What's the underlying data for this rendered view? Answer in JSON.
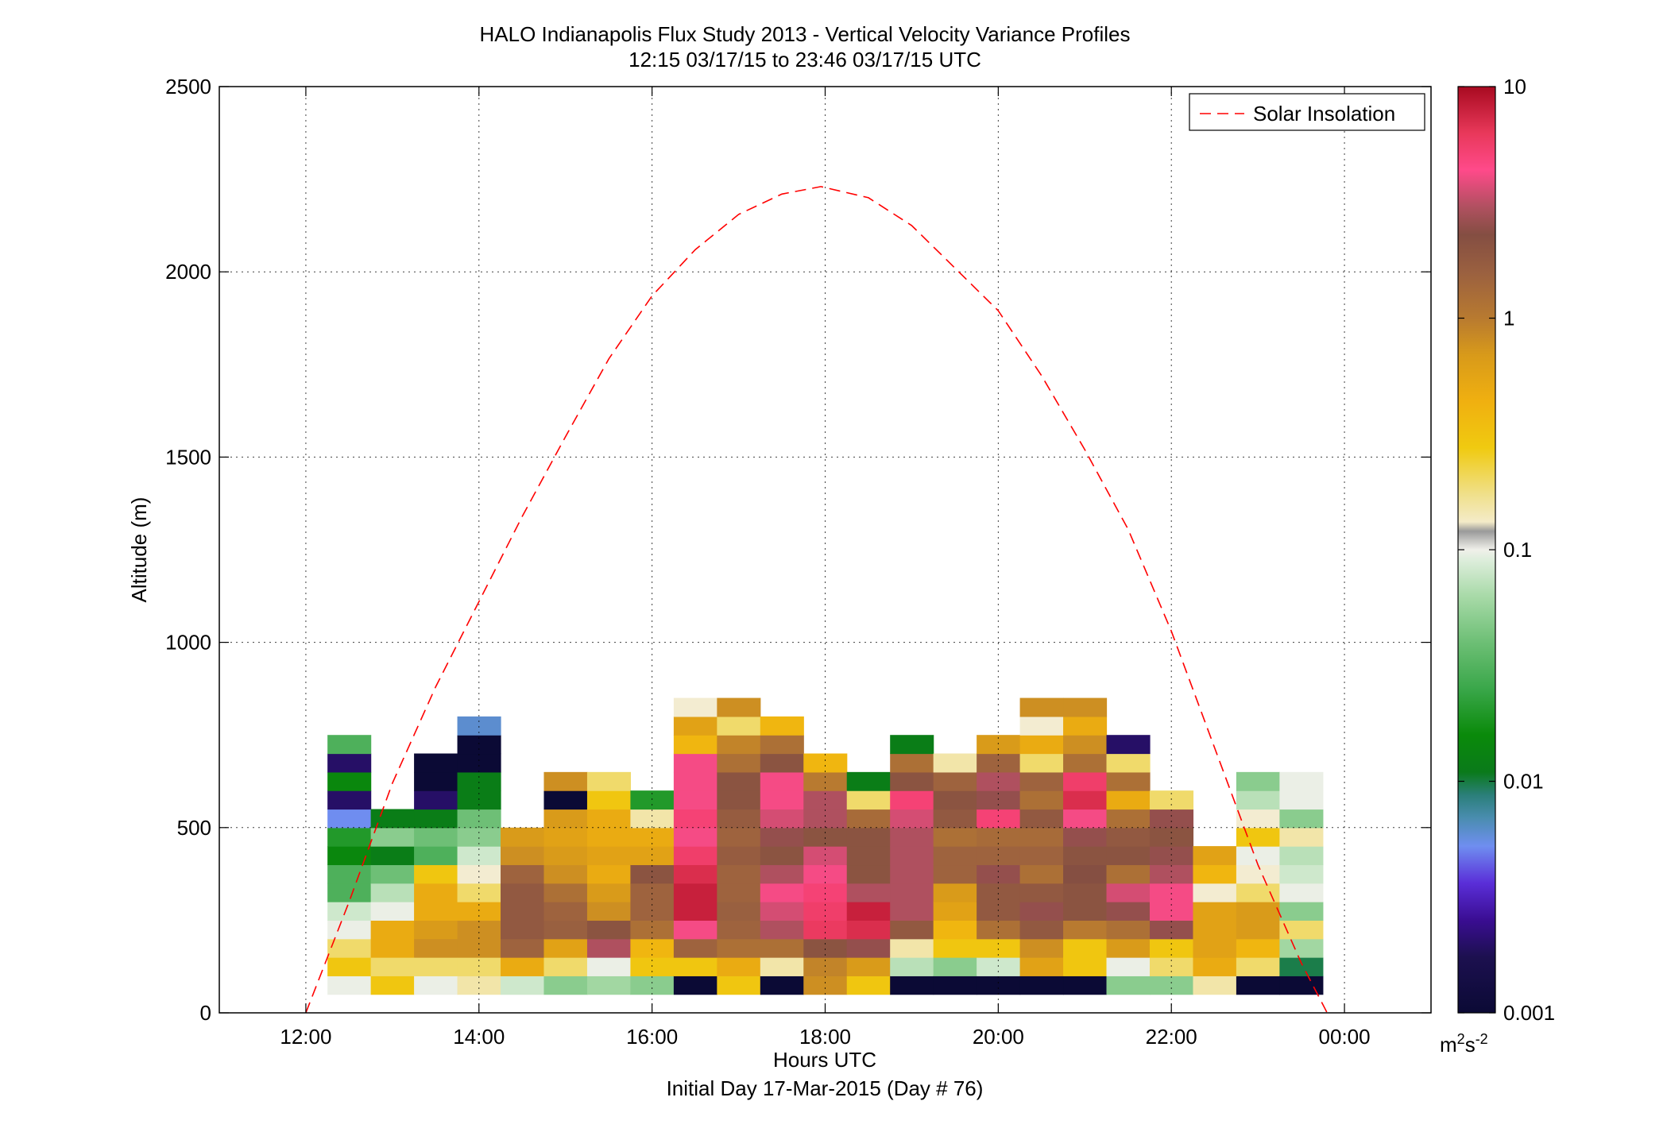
{
  "chart_data": {
    "type": "heatmap",
    "title": "HALO Indianapolis Flux Study 2013 - Vertical Velocity Variance Profiles",
    "subtitle": "12:15 03/17/15 to 23:46 03/17/15  UTC",
    "xlabel": "Hours UTC",
    "xlabel2": "Initial Day 17-Mar-2015 (Day # 76)",
    "ylabel": "Altitude (m)",
    "xlim": [
      11.0,
      25.0
    ],
    "ylim": [
      0,
      2500
    ],
    "x_ticks": [
      12,
      14,
      16,
      18,
      20,
      22,
      24
    ],
    "x_tick_labels": [
      "12:00",
      "14:00",
      "16:00",
      "18:00",
      "20:00",
      "22:00",
      "00:00"
    ],
    "y_ticks": [
      0,
      500,
      1000,
      1500,
      2000,
      2500
    ],
    "y_tick_labels": [
      "0",
      "500",
      "1000",
      "1500",
      "2000",
      "2500"
    ],
    "grid": true,
    "legend": {
      "position": "top-right",
      "entries": [
        "Solar Insolation"
      ]
    },
    "colorbar": {
      "scale": "log",
      "range": [
        0.001,
        10
      ],
      "ticks": [
        10,
        1,
        0.1,
        0.01,
        0.001
      ],
      "tick_labels": [
        "10",
        "1",
        "0.1",
        "0.01",
        "0.001"
      ],
      "units_base": "m",
      "units_exp1": "2",
      "units_mid": "s",
      "units_exp2": "-2"
    },
    "gate_height_m": 50,
    "column_width_h": 0.5,
    "first_column_center_h": 12.5,
    "columns": [
      [
        0.1,
        0.3,
        0.2,
        0.1,
        0.08,
        0.03,
        0.03,
        0.015,
        0.02,
        0.005,
        0.002,
        0.015,
        0.002,
        0.03
      ],
      [
        0.3,
        0.2,
        0.5,
        0.5,
        0.1,
        0.07,
        0.04,
        0.012,
        0.05,
        0.012
      ],
      [
        0.1,
        0.2,
        0.8,
        0.7,
        0.5,
        0.5,
        0.3,
        0.03,
        0.04,
        0.012,
        0.002,
        0.001,
        0.001
      ],
      [
        0.15,
        0.2,
        0.8,
        0.8,
        0.5,
        0.2,
        0.12,
        0.08,
        0.05,
        0.04,
        0.012,
        0.012,
        0.001,
        0.001,
        0.006
      ],
      [
        0.08,
        0.5,
        1.5,
        1.8,
        1.8,
        1.8,
        1.5,
        0.8,
        0.7
      ],
      [
        0.05,
        0.2,
        0.6,
        1.6,
        1.5,
        1.2,
        0.8,
        0.7,
        0.6,
        0.7,
        0.001,
        0.8
      ],
      [
        0.06,
        0.1,
        3.0,
        2.0,
        0.8,
        0.7,
        0.5,
        0.6,
        0.5,
        0.5,
        0.3,
        0.2
      ],
      [
        0.05,
        0.3,
        0.4,
        1.2,
        1.5,
        1.5,
        2.0,
        0.6,
        0.5,
        0.15,
        0.02
      ],
      [
        0.001,
        0.3,
        1.5,
        4.0,
        8.0,
        8.0,
        7.0,
        5.5,
        4.0,
        5.0,
        4.0,
        4.0,
        4.0,
        0.4,
        0.6,
        0.12
      ],
      [
        0.3,
        0.5,
        1.2,
        1.5,
        1.6,
        1.5,
        1.5,
        1.7,
        1.5,
        1.7,
        2.0,
        2.0,
        1.2,
        0.9,
        0.2,
        0.8
      ],
      [
        0.001,
        0.15,
        1.2,
        3.0,
        3.5,
        4.0,
        3.0,
        2.0,
        2.5,
        3.5,
        4.0,
        4.0,
        2.0,
        1.2,
        0.4
      ],
      [
        0.8,
        0.9,
        2.0,
        6.0,
        5.5,
        5.0,
        4.0,
        3.5,
        2.0,
        3.0,
        3.0,
        1.0,
        0.4
      ],
      [
        0.3,
        0.7,
        2.5,
        7.0,
        8.0,
        3.0,
        2.0,
        2.0,
        2.0,
        1.3,
        0.2,
        0.012
      ],
      [
        0.001,
        0.07,
        0.15,
        1.8,
        3.0,
        3.0,
        3.0,
        3.0,
        3.0,
        3.5,
        5.0,
        2.0,
        1.2,
        0.012
      ],
      [
        0.001,
        0.05,
        0.3,
        0.4,
        0.6,
        0.7,
        1.5,
        1.5,
        1.2,
        1.8,
        2.0,
        1.5,
        0.15
      ],
      [
        0.001,
        0.08,
        0.3,
        1.2,
        1.8,
        1.8,
        2.5,
        1.5,
        1.3,
        5.0,
        2.5,
        3.0,
        1.5,
        0.7
      ],
      [
        0.001,
        0.6,
        0.8,
        1.8,
        2.5,
        1.8,
        1.2,
        1.5,
        1.3,
        1.8,
        1.2,
        1.5,
        0.2,
        0.5,
        0.12,
        0.8
      ],
      [
        0.001,
        0.3,
        0.3,
        1.0,
        2.0,
        2.0,
        2.2,
        2.0,
        2.5,
        4.0,
        7.0,
        5.5,
        1.2,
        0.8,
        0.5,
        0.8
      ],
      [
        0.05,
        0.1,
        0.7,
        1.2,
        2.5,
        3.5,
        1.2,
        2.0,
        1.8,
        1.2,
        0.5,
        1.2,
        0.2,
        0.002
      ],
      [
        0.05,
        0.2,
        0.3,
        2.5,
        4.0,
        4.0,
        3.0,
        2.5,
        2.0,
        2.5,
        0.2
      ],
      [
        0.15,
        0.5,
        0.6,
        0.6,
        0.6,
        0.12,
        0.4,
        0.6
      ],
      [
        0.001,
        0.2,
        0.4,
        0.7,
        0.7,
        0.2,
        0.12,
        0.1,
        0.3,
        0.12,
        0.07,
        0.05
      ],
      [
        0.001,
        0.01,
        0.06,
        0.2,
        0.05,
        0.1,
        0.08,
        0.07,
        0.15,
        0.05,
        0.1,
        0.1
      ]
    ],
    "series": [
      {
        "name": "Solar Insolation",
        "type": "line",
        "style": "dashed",
        "color": "#ff0000",
        "x": [
          12.0,
          12.5,
          13.0,
          13.5,
          14.0,
          14.5,
          15.0,
          15.5,
          16.0,
          16.5,
          17.0,
          17.5,
          17.95,
          18.5,
          19.0,
          19.5,
          20.0,
          20.5,
          21.0,
          21.5,
          22.0,
          22.5,
          23.0,
          23.5,
          23.8
        ],
        "y": [
          0,
          300,
          620,
          880,
          1110,
          1340,
          1555,
          1765,
          1935,
          2060,
          2155,
          2210,
          2230,
          2200,
          2125,
          2010,
          1895,
          1720,
          1520,
          1305,
          1030,
          715,
          400,
          135,
          0
        ]
      }
    ]
  }
}
